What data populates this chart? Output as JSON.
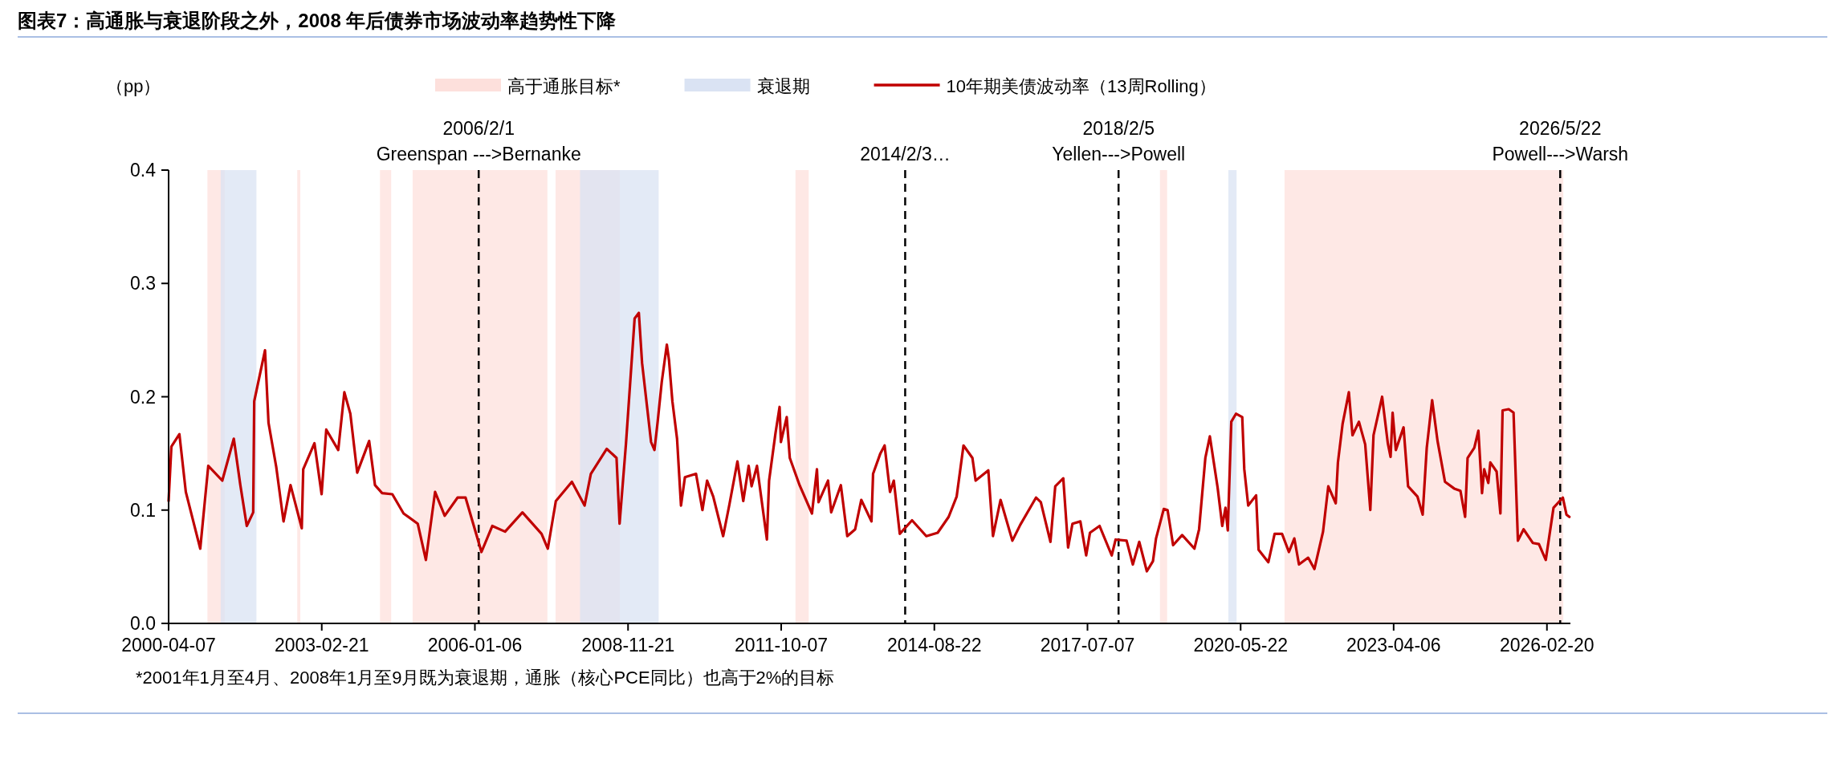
{
  "chart_data": {
    "type": "line",
    "title": "图表7：高通胀与衰退阶段之外，2008 年后债券市场波动率趋势性下降",
    "ylabel": "（pp）",
    "legend": "top",
    "xlim": [
      "2000-04-07",
      "2026-07-31"
    ],
    "xticks": [
      "2000-04-07",
      "2003-02-21",
      "2006-01-06",
      "2008-11-21",
      "2011-10-07",
      "2014-08-22",
      "2017-07-07",
      "2020-05-22",
      "2023-04-06",
      "2026-02-20"
    ],
    "ylim": [
      0,
      0.4
    ],
    "yticks": [
      {
        "value": 0,
        "label": "0.0"
      },
      0.1,
      0.2,
      0.3,
      0.4
    ],
    "bands": [
      {
        "axis": "x",
        "from": "2000-12-29",
        "to": "2001-04-27",
        "label": "高于通胀目标*",
        "color": "#fde0dc"
      },
      {
        "axis": "x",
        "from": "2002-09-06",
        "to": "2002-09-27",
        "color": "#fde0dc"
      },
      {
        "axis": "x",
        "from": "2004-03-26",
        "to": "2004-06-11",
        "color": "#fde0dc"
      },
      {
        "axis": "x",
        "from": "2004-11-05",
        "to": "2007-05-18",
        "color": "#fde0dc"
      },
      {
        "axis": "x",
        "from": "2007-07-13",
        "to": "2008-09-26",
        "color": "#fde0dc"
      },
      {
        "axis": "x",
        "from": "2012-01-13",
        "to": "2012-04-13",
        "color": "#fde0dc"
      },
      {
        "axis": "x",
        "from": "2018-11-16",
        "to": "2019-01-04",
        "color": "#fde0dc"
      },
      {
        "axis": "x",
        "from": "2021-03-19",
        "to": "2026-06-12",
        "color": "#fde0dc"
      },
      {
        "axis": "x",
        "from": "2001-03-30",
        "to": "2001-11-30",
        "label": "衰退期",
        "color": "#dae3f3"
      },
      {
        "axis": "x",
        "from": "2007-12-28",
        "to": "2009-06-19",
        "color": "#dae3f3"
      },
      {
        "axis": "x",
        "from": "2020-02-28",
        "to": "2020-04-24",
        "color": "#dae3f3"
      }
    ],
    "ref_lines": [
      {
        "axis": "x",
        "value": "2006-02-01",
        "label": "2006/2/1\nGreenspan --->Bernanke",
        "color": "#000000",
        "line_style": "dashed"
      },
      {
        "axis": "x",
        "value": "2014-02-03",
        "label": "2014/2/3…",
        "color": "#000000",
        "line_style": "dashed"
      },
      {
        "axis": "x",
        "value": "2018-02-05",
        "label": "2018/2/5\nYellen--->Powell",
        "color": "#000000",
        "line_style": "dashed"
      },
      {
        "axis": "x",
        "value": "2026-05-22",
        "label": "2026/5/22\nPowell--->Warsh",
        "color": "#000000",
        "line_style": "dashed"
      }
    ],
    "annotations": [
      "*2001年1月至4月、2008年1月至9月既为衰退期，通胀（核心PCE同比）也高于2%的目标"
    ],
    "series": [
      {
        "name": "10年期美债波动率（13周Rolling）",
        "color": "#c00000",
        "x": [
          "2000-04-07",
          "2000-04-26",
          "2000-06-20",
          "2000-08-03",
          "2000-11-10",
          "2001-01-04",
          "2001-04-10",
          "2001-06-28",
          "2001-08-12",
          "2001-09-25",
          "2001-11-08",
          "2001-11-15",
          "2002-01-28",
          "2002-02-21",
          "2002-04-15",
          "2002-06-04",
          "2002-07-22",
          "2002-10-07",
          "2002-10-17",
          "2003-01-02",
          "2003-02-20",
          "2003-03-24",
          "2003-06-14",
          "2003-07-26",
          "2003-09-05",
          "2003-10-22",
          "2004-01-12",
          "2004-02-21",
          "2004-04-10",
          "2004-06-19",
          "2004-09-04",
          "2004-12-10",
          "2005-02-04",
          "2005-04-08",
          "2005-06-13",
          "2005-09-09",
          "2005-11-03",
          "2006-02-20",
          "2006-05-05",
          "2006-08-01",
          "2006-11-28",
          "2007-04-08",
          "2007-05-21",
          "2007-07-15",
          "2007-11-02",
          "2008-01-28",
          "2008-03-11",
          "2008-06-28",
          "2008-09-03",
          "2008-09-24",
          "2008-11-07",
          "2009-01-05",
          "2009-02-03",
          "2009-02-25",
          "2009-04-28",
          "2009-05-21",
          "2009-06-12",
          "2009-07-10",
          "2009-08-14",
          "2009-08-29",
          "2009-09-21",
          "2009-10-23",
          "2009-11-19",
          "2009-12-16",
          "2010-03-02",
          "2010-04-15",
          "2010-05-17",
          "2010-06-28",
          "2010-09-04",
          "2010-10-17",
          "2010-12-11",
          "2011-01-20",
          "2011-02-26",
          "2011-03-18",
          "2011-04-24",
          "2011-07-01",
          "2011-07-16",
          "2011-08-29",
          "2011-09-26",
          "2011-10-05",
          "2011-11-14",
          "2011-12-05",
          "2012-02-10",
          "2012-05-05",
          "2012-06-08",
          "2012-06-19",
          "2012-08-23",
          "2012-09-14",
          "2012-11-19",
          "2013-01-02",
          "2013-02-25",
          "2013-04-08",
          "2013-06-17",
          "2013-06-28",
          "2013-08-17",
          "2013-09-15",
          "2013-10-22",
          "2013-11-17",
          "2013-12-28",
          "2014-03-22",
          "2014-06-28",
          "2014-09-14",
          "2014-11-28",
          "2015-01-22",
          "2015-03-10",
          "2015-05-10",
          "2015-06-01",
          "2015-08-27",
          "2015-09-28",
          "2015-11-19",
          "2016-02-08",
          "2016-04-02",
          "2016-07-19",
          "2016-08-21",
          "2016-10-26",
          "2016-11-28",
          "2017-01-22",
          "2017-02-24",
          "2017-03-26",
          "2017-05-19",
          "2017-06-28",
          "2017-07-24",
          "2017-09-28",
          "2017-12-20",
          "2018-01-16",
          "2018-04-01",
          "2018-05-14",
          "2018-06-27",
          "2018-08-18",
          "2018-09-29",
          "2018-10-20",
          "2018-12-12",
          "2019-01-07",
          "2019-02-14",
          "2019-04-17",
          "2019-07-10",
          "2019-08-11",
          "2019-09-23",
          "2019-10-24",
          "2019-12-16",
          "2020-01-17",
          "2020-02-08",
          "2020-02-24",
          "2020-03-19",
          "2020-04-20",
          "2020-06-02",
          "2020-06-16",
          "2020-07-13",
          "2020-09-05",
          "2020-09-22",
          "2020-11-28",
          "2021-01-10",
          "2021-03-02",
          "2021-04-18",
          "2021-05-25",
          "2021-06-26",
          "2021-08-28",
          "2021-10-10",
          "2021-12-08",
          "2022-01-13",
          "2022-03-05",
          "2022-03-20",
          "2022-04-21",
          "2022-06-03",
          "2022-06-28",
          "2022-08-11",
          "2022-09-23",
          "2022-10-28",
          "2022-11-19",
          "2023-01-17",
          "2023-02-25",
          "2023-03-16",
          "2023-03-30",
          "2023-04-21",
          "2023-06-13",
          "2023-07-14",
          "2023-09-16",
          "2023-10-22",
          "2023-11-19",
          "2023-12-26",
          "2024-02-01",
          "2024-03-23",
          "2024-05-25",
          "2024-07-07",
          "2024-08-08",
          "2024-08-25",
          "2024-10-10",
          "2024-11-07",
          "2024-12-02",
          "2024-12-17",
          "2025-01-14",
          "2025-01-28",
          "2025-03-12",
          "2025-04-07",
          "2025-04-22",
          "2025-06-03",
          "2025-07-06",
          "2025-08-05",
          "2025-09-13",
          "2025-11-15",
          "2025-12-27",
          "2026-02-12",
          "2026-04-06",
          "2026-06-09",
          "2026-07-04",
          "2026-07-24"
        ],
        "values": [
          0.108,
          0.156,
          0.167,
          0.116,
          0.066,
          0.139,
          0.126,
          0.163,
          0.122,
          0.086,
          0.098,
          0.196,
          0.241,
          0.177,
          0.138,
          0.09,
          0.122,
          0.084,
          0.136,
          0.159,
          0.114,
          0.171,
          0.153,
          0.204,
          0.185,
          0.133,
          0.161,
          0.122,
          0.115,
          0.114,
          0.097,
          0.088,
          0.056,
          0.116,
          0.095,
          0.111,
          0.111,
          0.063,
          0.086,
          0.081,
          0.098,
          0.079,
          0.066,
          0.108,
          0.125,
          0.104,
          0.132,
          0.154,
          0.146,
          0.088,
          0.159,
          0.269,
          0.274,
          0.23,
          0.16,
          0.153,
          0.178,
          0.213,
          0.246,
          0.232,
          0.196,
          0.163,
          0.104,
          0.129,
          0.132,
          0.1,
          0.126,
          0.112,
          0.077,
          0.105,
          0.143,
          0.108,
          0.139,
          0.121,
          0.139,
          0.074,
          0.126,
          0.168,
          0.191,
          0.16,
          0.182,
          0.146,
          0.122,
          0.097,
          0.136,
          0.107,
          0.126,
          0.098,
          0.122,
          0.077,
          0.083,
          0.109,
          0.09,
          0.132,
          0.15,
          0.157,
          0.116,
          0.126,
          0.079,
          0.091,
          0.077,
          0.08,
          0.094,
          0.112,
          0.157,
          0.146,
          0.126,
          0.135,
          0.077,
          0.109,
          0.073,
          0.087,
          0.111,
          0.107,
          0.072,
          0.121,
          0.128,
          0.067,
          0.088,
          0.09,
          0.06,
          0.08,
          0.086,
          0.06,
          0.074,
          0.073,
          0.052,
          0.072,
          0.046,
          0.055,
          0.075,
          0.101,
          0.1,
          0.069,
          0.078,
          0.066,
          0.083,
          0.146,
          0.165,
          0.12,
          0.086,
          0.102,
          0.082,
          0.178,
          0.185,
          0.182,
          0.136,
          0.104,
          0.113,
          0.065,
          0.054,
          0.079,
          0.079,
          0.063,
          0.075,
          0.052,
          0.058,
          0.048,
          0.081,
          0.121,
          0.106,
          0.142,
          0.176,
          0.204,
          0.166,
          0.178,
          0.158,
          0.1,
          0.166,
          0.2,
          0.159,
          0.147,
          0.186,
          0.153,
          0.173,
          0.121,
          0.112,
          0.096,
          0.155,
          0.197,
          0.161,
          0.125,
          0.119,
          0.117,
          0.094,
          0.146,
          0.155,
          0.17,
          0.115,
          0.136,
          0.124,
          0.142,
          0.134,
          0.097,
          0.188,
          0.189,
          0.186,
          0.073,
          0.083,
          0.071,
          0.07,
          0.056,
          0.102,
          0.111,
          0.096,
          0.094
        ]
      }
    ]
  }
}
